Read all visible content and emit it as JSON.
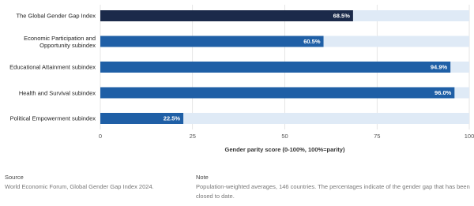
{
  "chart_data": {
    "type": "bar",
    "orientation": "horizontal",
    "categories": [
      "The Global Gender Gap Index",
      "Economic Participation and\nOpportunity subindex",
      "Educational Attainment subindex",
      "Health and Survival subindex",
      "Political Empowerment subindex"
    ],
    "values": [
      68.5,
      60.5,
      94.9,
      96.0,
      22.5
    ],
    "value_labels": [
      "68.5%",
      "60.5%",
      "94.9%",
      "96.0%",
      "22.5%"
    ],
    "colors": [
      "#1b2a4a",
      "#1f5fa6",
      "#1f5fa6",
      "#1f5fa6",
      "#1f5fa6"
    ],
    "track_color": "#dfeaf6",
    "x_label": "Gender parity score (0-100%, 100%=parity)",
    "xlim": [
      0,
      100
    ],
    "xticks": [
      0,
      25,
      50,
      75,
      100
    ],
    "grid": true
  },
  "footer": {
    "source_label": "Source",
    "source_text": "World Economic Forum, Global Gender Gap Index 2024.",
    "note_label": "Note",
    "note_text": "Population-weighted averages, 146 countries. The percentages indicate of the gender gap that has been closed to date."
  }
}
